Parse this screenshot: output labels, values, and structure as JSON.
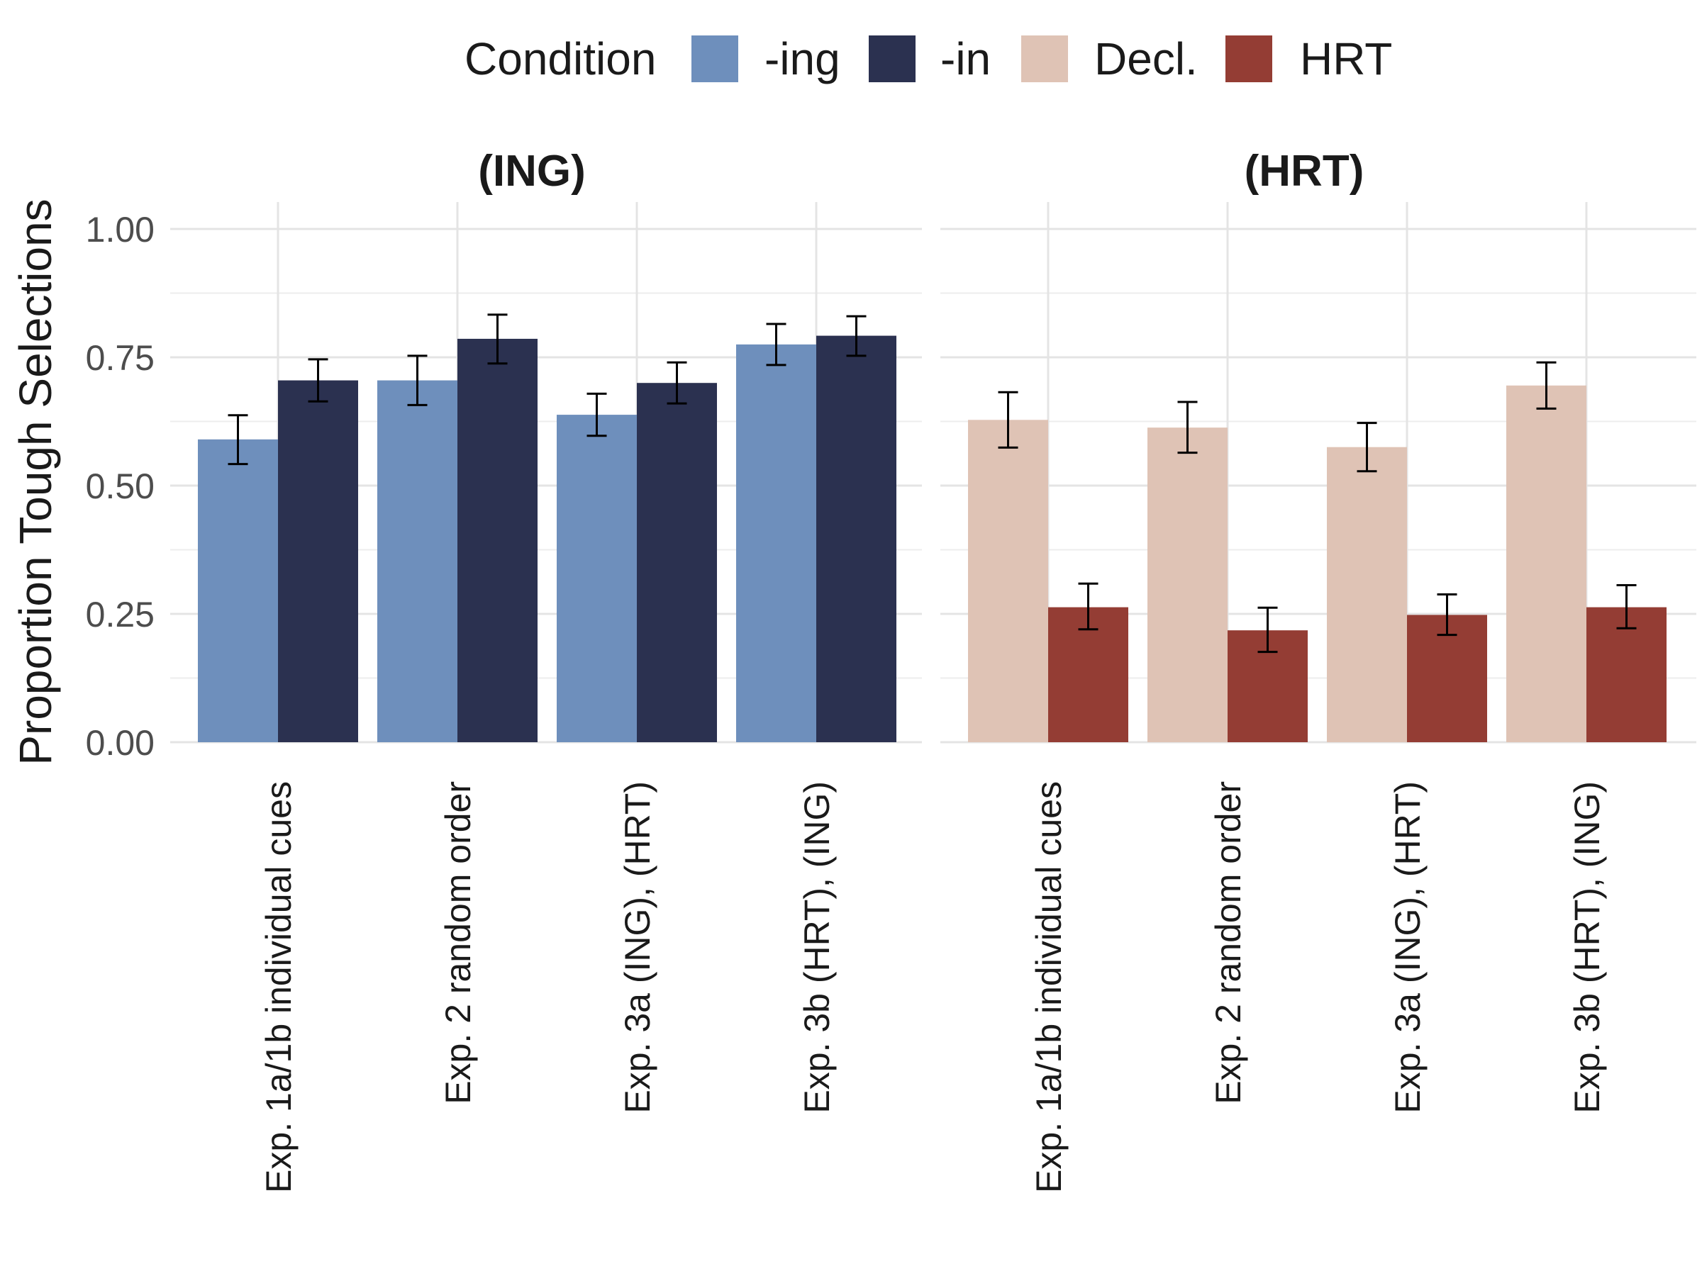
{
  "chart_data": {
    "type": "bar",
    "ylabel": "Proportion Tough Selections",
    "ylim": [
      0,
      1.05
    ],
    "yticks": [
      "0.00",
      "0.25",
      "0.50",
      "0.75",
      "1.00"
    ],
    "ytick_values": [
      0,
      0.25,
      0.5,
      0.75,
      1.0
    ],
    "grid": true,
    "legend": {
      "title": "Condition",
      "placement": "top",
      "items": [
        {
          "label": "-ing",
          "color": "#6e8fbc"
        },
        {
          "label": "-in",
          "color": "#2b3150"
        },
        {
          "label": "Decl.",
          "color": "#dfc3b5"
        },
        {
          "label": "HRT",
          "color": "#943d34"
        }
      ]
    },
    "categories": [
      "Exp. 1a/1b individual cues",
      "Exp. 2 random order",
      "Exp. 3a (ING), (HRT)",
      "Exp. 3b  (HRT), (ING)"
    ],
    "panels": [
      {
        "title": "(ING)",
        "series": [
          {
            "name": "-ing",
            "color": "#6e8fbc",
            "values": [
              0.59,
              0.705,
              0.638,
              0.775
            ],
            "error_low": [
              0.542,
              0.657,
              0.597,
              0.735
            ],
            "error_high": [
              0.637,
              0.753,
              0.679,
              0.815
            ]
          },
          {
            "name": "-in",
            "color": "#2b3150",
            "values": [
              0.705,
              0.786,
              0.7,
              0.792
            ],
            "error_low": [
              0.664,
              0.738,
              0.66,
              0.753
            ],
            "error_high": [
              0.746,
              0.833,
              0.74,
              0.83
            ]
          }
        ]
      },
      {
        "title": "(HRT)",
        "series": [
          {
            "name": "Decl.",
            "color": "#dfc3b5",
            "values": [
              0.628,
              0.613,
              0.575,
              0.695
            ],
            "error_low": [
              0.574,
              0.564,
              0.528,
              0.65
            ],
            "error_high": [
              0.682,
              0.663,
              0.622,
              0.74
            ]
          },
          {
            "name": "HRT",
            "color": "#943d34",
            "values": [
              0.263,
              0.218,
              0.248,
              0.263
            ],
            "error_low": [
              0.22,
              0.176,
              0.209,
              0.222
            ],
            "error_high": [
              0.309,
              0.262,
              0.288,
              0.306
            ]
          }
        ]
      }
    ]
  }
}
